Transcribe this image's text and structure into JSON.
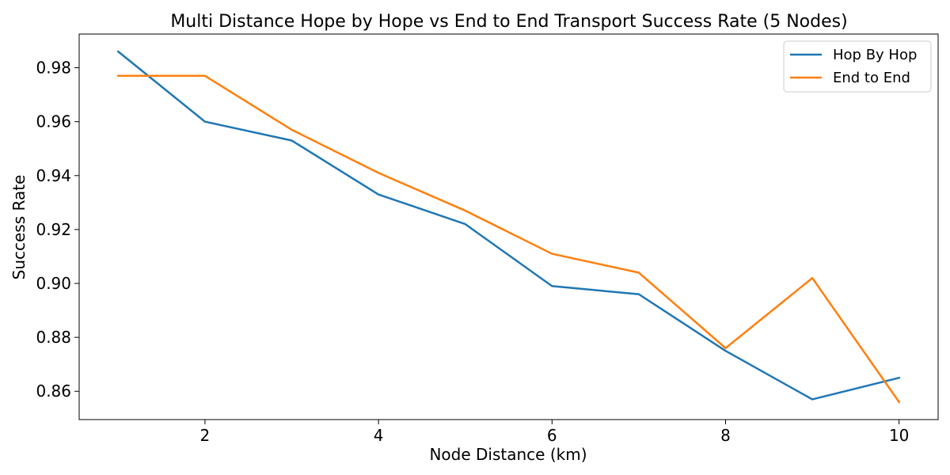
{
  "chart_data": {
    "type": "line",
    "title": "Multi Distance Hope by Hope vs End to End Transport Success Rate (5 Nodes)",
    "xlabel": "Node Distance (km)",
    "ylabel": "Success Rate",
    "x": [
      1,
      2,
      3,
      4,
      5,
      6,
      7,
      8,
      9,
      10
    ],
    "xlim": [
      0.55,
      10.45
    ],
    "ylim": [
      0.8495,
      0.9925
    ],
    "xticks": [
      2,
      4,
      6,
      8,
      10
    ],
    "xtick_labels": [
      "2",
      "4",
      "6",
      "8",
      "10"
    ],
    "yticks": [
      0.86,
      0.88,
      0.9,
      0.92,
      0.94,
      0.96,
      0.98
    ],
    "ytick_labels": [
      "0.86",
      "0.88",
      "0.90",
      "0.92",
      "0.94",
      "0.96",
      "0.98"
    ],
    "grid": false,
    "legend_position": "top-right",
    "series": [
      {
        "name": "Hop By Hop",
        "color": "#1f77b4",
        "values": [
          0.986,
          0.96,
          0.953,
          0.933,
          0.922,
          0.899,
          0.896,
          0.875,
          0.857,
          0.865
        ]
      },
      {
        "name": "End to End",
        "color": "#ff7f0e",
        "values": [
          0.977,
          0.977,
          0.957,
          0.941,
          0.927,
          0.911,
          0.904,
          0.876,
          0.902,
          0.856
        ]
      }
    ]
  }
}
